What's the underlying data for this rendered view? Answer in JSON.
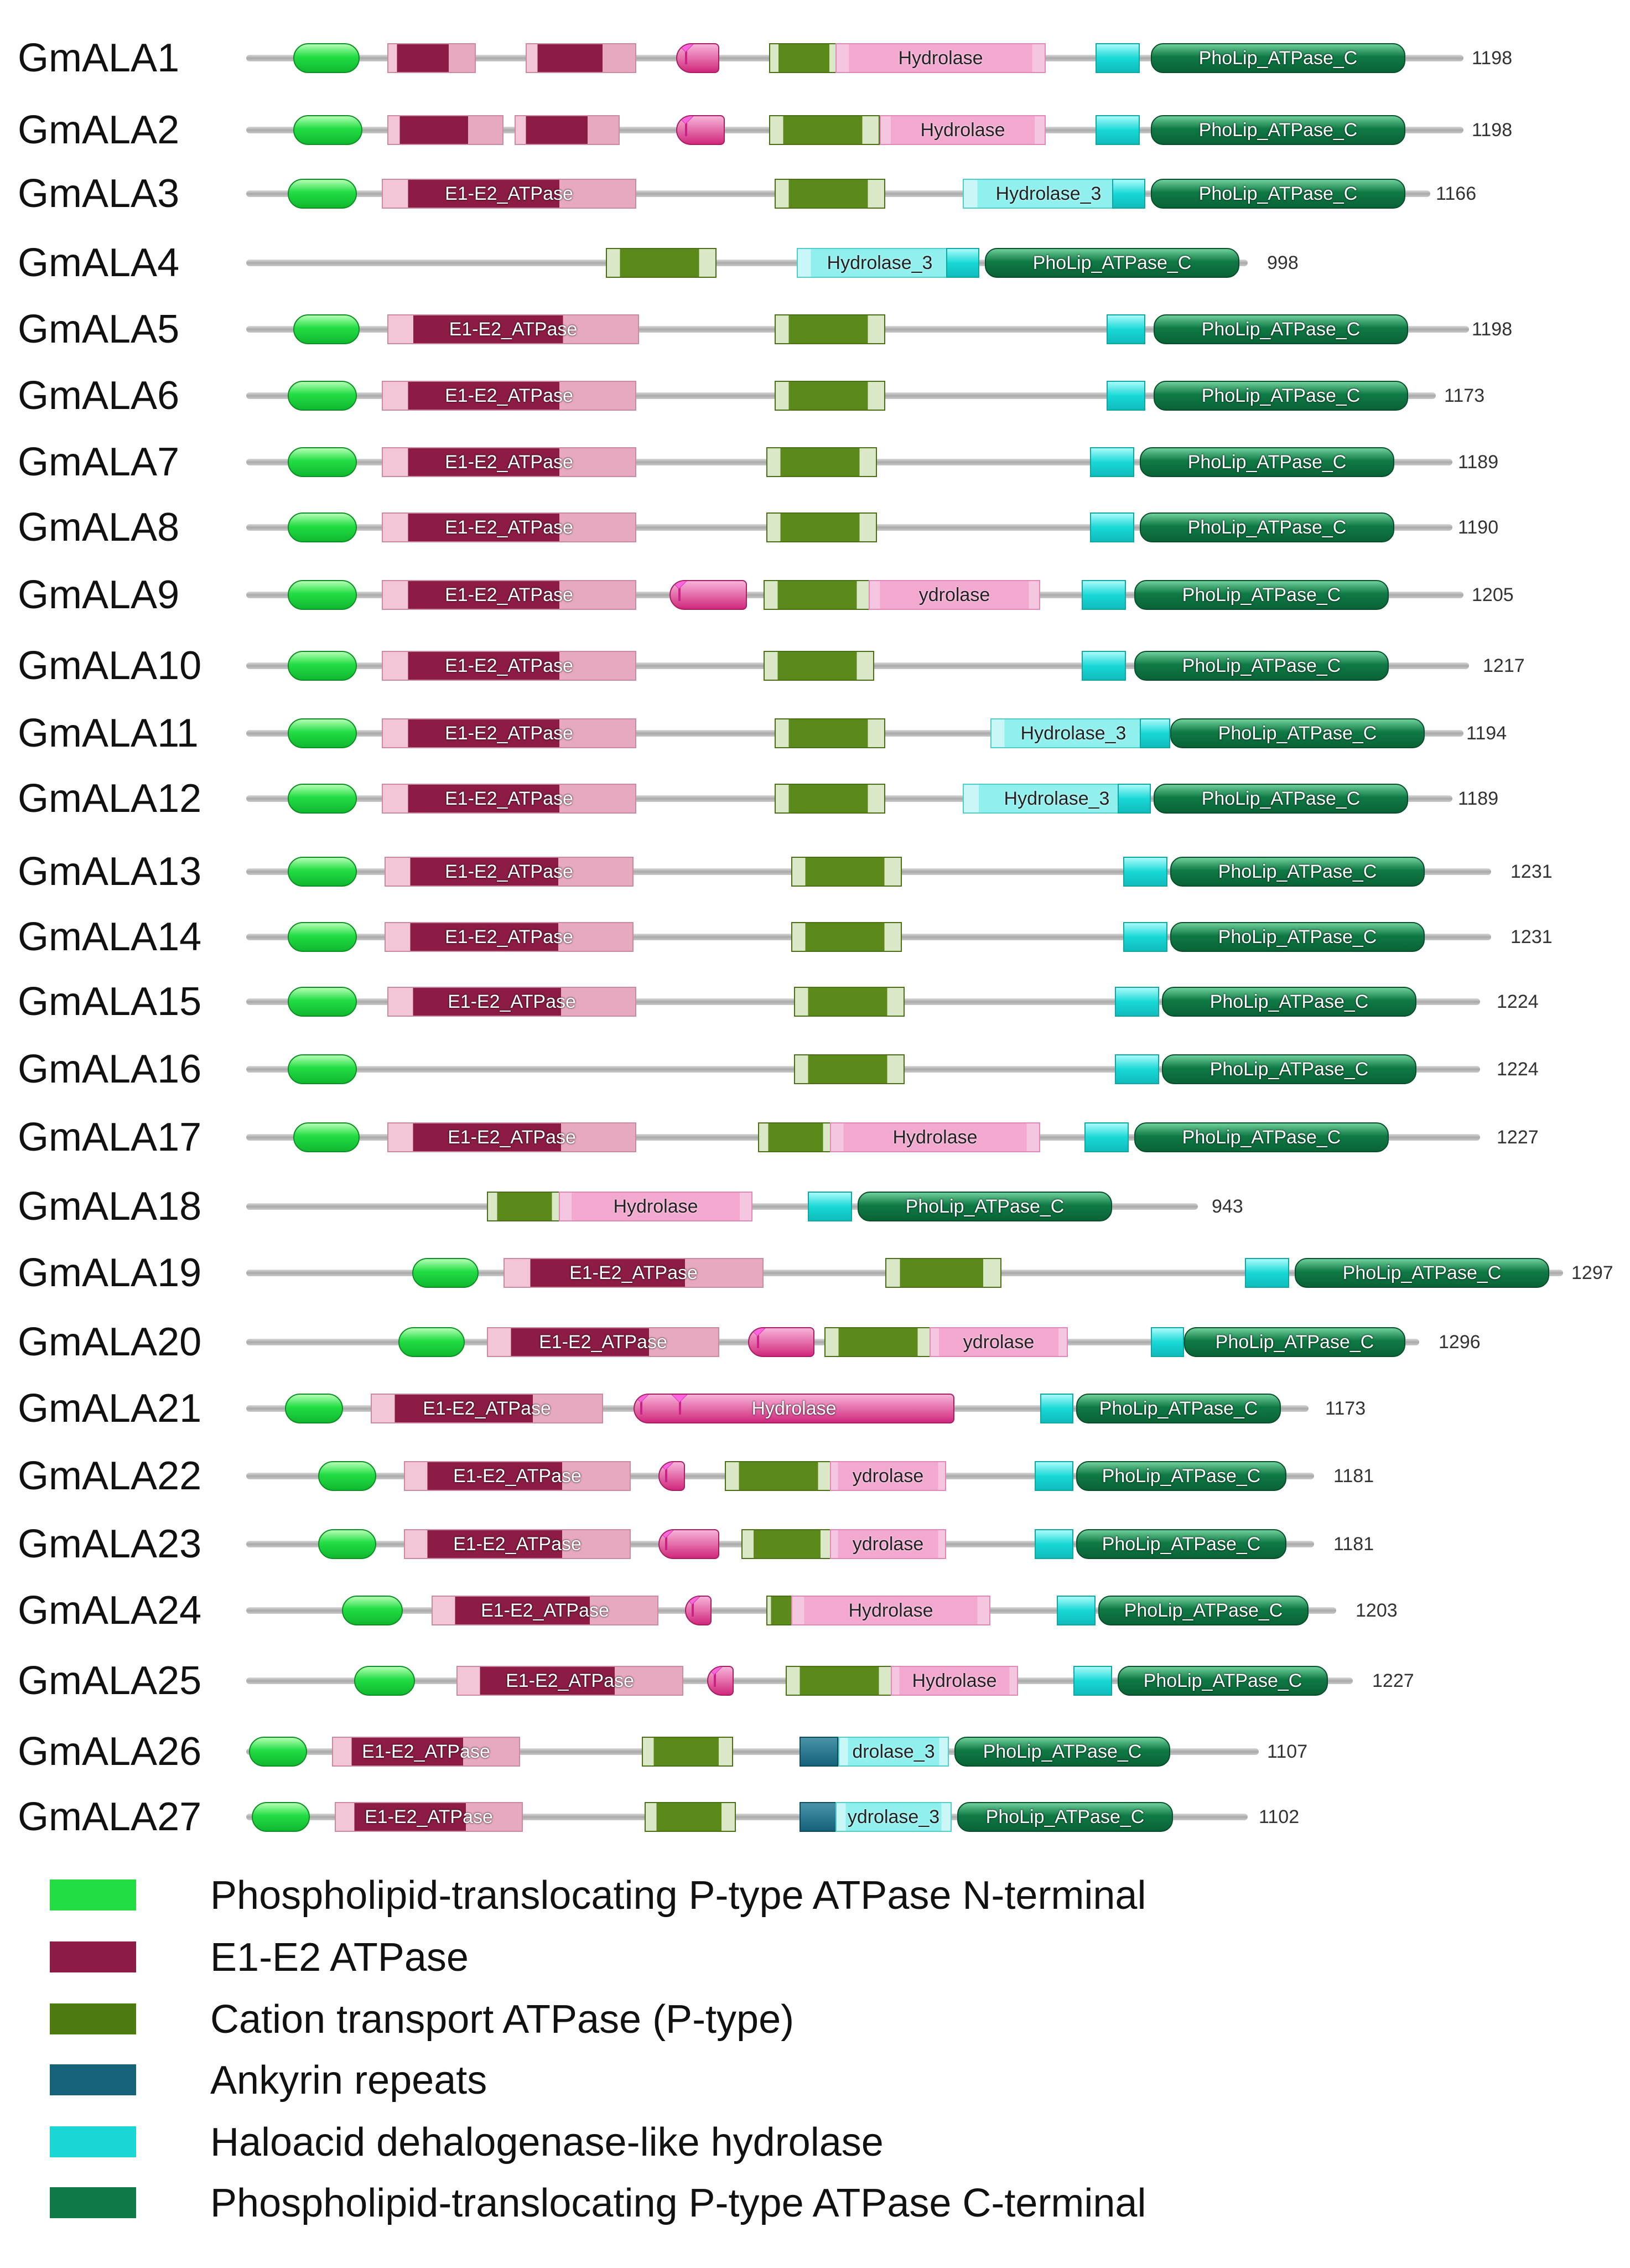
{
  "proteins": [
    {
      "name": "GmALA1",
      "length": "1198"
    },
    {
      "name": "GmALA2",
      "length": "1198"
    },
    {
      "name": "GmALA3",
      "length": "1166"
    },
    {
      "name": "GmALA4",
      "length": "998"
    },
    {
      "name": "GmALA5",
      "length": "1198"
    },
    {
      "name": "GmALA6",
      "length": "1173"
    },
    {
      "name": "GmALA7",
      "length": "1189"
    },
    {
      "name": "GmALA8",
      "length": "1190"
    },
    {
      "name": "GmALA9",
      "length": "1205"
    },
    {
      "name": "GmALA10",
      "length": "1217"
    },
    {
      "name": "GmALA11",
      "length": "1194"
    },
    {
      "name": "GmALA12",
      "length": "1189"
    },
    {
      "name": "GmALA13",
      "length": "1231"
    },
    {
      "name": "GmALA14",
      "length": "1231"
    },
    {
      "name": "GmALA15",
      "length": "1224"
    },
    {
      "name": "GmALA16",
      "length": "1224"
    },
    {
      "name": "GmALA17",
      "length": "1227"
    },
    {
      "name": "GmALA18",
      "length": "943"
    },
    {
      "name": "GmALA19",
      "length": "1297"
    },
    {
      "name": "GmALA20",
      "length": "1296"
    },
    {
      "name": "GmALA21",
      "length": "1173"
    },
    {
      "name": "GmALA22",
      "length": "1181"
    },
    {
      "name": "GmALA23",
      "length": "1181"
    },
    {
      "name": "GmALA24",
      "length": "1203"
    },
    {
      "name": "GmALA25",
      "length": "1227"
    },
    {
      "name": "GmALA26",
      "length": "1107"
    },
    {
      "name": "GmALA27",
      "length": "1102"
    }
  ],
  "domain_labels": {
    "e1e2": "E1-E2_ATPase",
    "hydrolase": "Hydrolase",
    "hydrolase_partial": "ydrolase",
    "hydrolase_partial_9": "ydrolase",
    "hydrolase3": "Hydrolase_3",
    "hydrolase3_partial": "drolase_3",
    "hydrolase3_partial_27": "ydrolase_3",
    "cterm": "PhoLip_ATPase_C"
  },
  "legend": [
    {
      "label": "Phospholipid-translocating P-type ATPase N-terminal",
      "color": "#22dd44"
    },
    {
      "label": "E1-E2 ATPase",
      "color": "#8c1c45"
    },
    {
      "label": "Cation transport ATPase (P-type)",
      "color": "#4e7a12"
    },
    {
      "label": "Ankyrin repeats",
      "color": "#15627a"
    },
    {
      "label": "Haloacid dehalogenase-like hydrolase",
      "color": "#1ad6d4"
    },
    {
      "label": "Phospholipid-translocating P-type ATPase C-terminal",
      "color": "#0f7a45"
    }
  ]
}
